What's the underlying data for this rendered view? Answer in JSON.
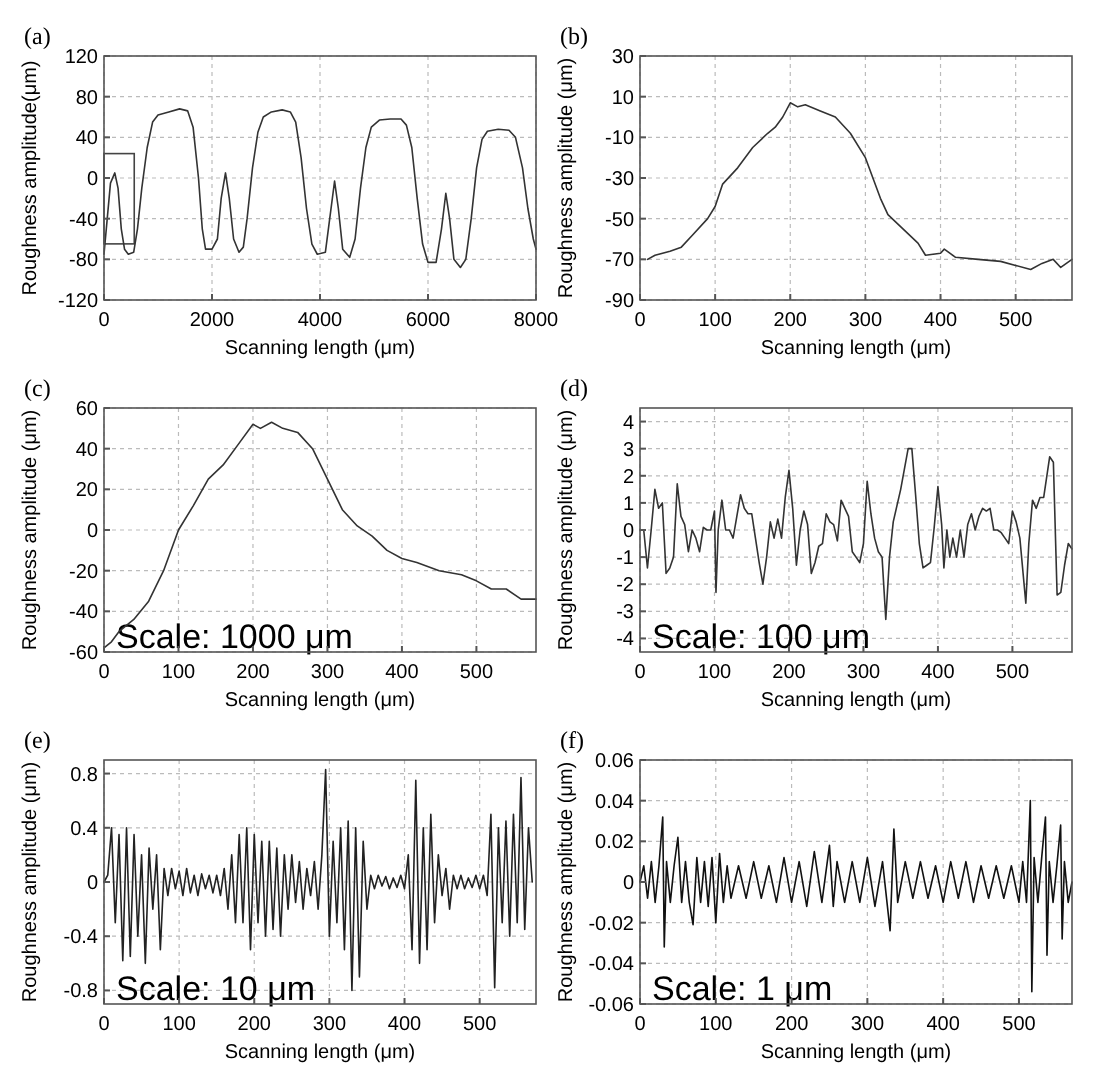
{
  "chart_data": [
    {
      "type": "line",
      "title": "(a)",
      "xlabel": "Scanning length (μm)",
      "ylabel": "Roughness amplitude(μm)",
      "color": "#333333",
      "grid": true,
      "xlim": [
        0,
        8000
      ],
      "xticks": [
        0,
        2000,
        4000,
        6000,
        8000
      ],
      "ylim": [
        -120,
        120
      ],
      "yticks": [
        -120,
        -80,
        -40,
        0,
        40,
        80,
        120
      ],
      "x": [
        0,
        60,
        120,
        200,
        260,
        320,
        380,
        450,
        550,
        620,
        700,
        800,
        900,
        1000,
        1200,
        1400,
        1550,
        1650,
        1750,
        1820,
        1880,
        2000,
        2100,
        2170,
        2250,
        2320,
        2400,
        2500,
        2580,
        2650,
        2750,
        2850,
        2950,
        3100,
        3300,
        3450,
        3550,
        3650,
        3750,
        3850,
        3950,
        4100,
        4180,
        4270,
        4340,
        4420,
        4550,
        4650,
        4750,
        4850,
        4950,
        5100,
        5300,
        5500,
        5600,
        5700,
        5800,
        5900,
        6000,
        6150,
        6250,
        6330,
        6400,
        6480,
        6600,
        6700,
        6800,
        6900,
        7000,
        7100,
        7300,
        7500,
        7620,
        7750,
        7850,
        7950,
        8000
      ],
      "values": [
        -75,
        -40,
        -5,
        5,
        -10,
        -50,
        -70,
        -75,
        -73,
        -50,
        -10,
        30,
        55,
        62,
        65,
        68,
        66,
        50,
        0,
        -50,
        -70,
        -70,
        -60,
        -20,
        5,
        -20,
        -60,
        -73,
        -68,
        -40,
        10,
        45,
        60,
        65,
        67,
        65,
        55,
        20,
        -30,
        -65,
        -75,
        -73,
        -40,
        -3,
        -30,
        -70,
        -78,
        -60,
        -10,
        30,
        50,
        57,
        58,
        58,
        52,
        30,
        -20,
        -65,
        -83,
        -83,
        -50,
        -15,
        -40,
        -80,
        -88,
        -80,
        -40,
        10,
        38,
        46,
        48,
        47,
        40,
        10,
        -30,
        -60,
        -70
      ]
    },
    {
      "type": "line",
      "title": "(b)",
      "xlabel": "Scanning length (μm)",
      "ylabel": "Roughness amplitude (μm)",
      "color": "#333333",
      "grid": true,
      "xlim": [
        0,
        575
      ],
      "xticks": [
        0,
        100,
        200,
        300,
        400,
        500
      ],
      "ylim": [
        -90,
        30
      ],
      "yticks": [
        -90,
        -70,
        -50,
        -30,
        -10,
        10,
        30
      ],
      "x": [
        10,
        20,
        40,
        55,
        70,
        90,
        100,
        110,
        130,
        150,
        170,
        180,
        190,
        200,
        210,
        220,
        240,
        260,
        280,
        300,
        320,
        330,
        350,
        370,
        380,
        400,
        405,
        420,
        450,
        480,
        500,
        520,
        535,
        550,
        560,
        575
      ],
      "values": [
        -70,
        -68,
        -66,
        -64,
        -58,
        -50,
        -44,
        -33,
        -25,
        -15,
        -8,
        -5,
        0,
        7,
        5,
        6,
        3,
        0,
        -8,
        -20,
        -40,
        -48,
        -55,
        -62,
        -68,
        -67,
        -65,
        -69,
        -70,
        -71,
        -73,
        -75,
        -72,
        -70,
        -74,
        -70
      ]
    },
    {
      "type": "line",
      "title": "(c)",
      "xlabel": "Scanning length (μm)",
      "ylabel": "Roughness amplitude (μm)",
      "color": "#333333",
      "grid": true,
      "xlim": [
        0,
        580
      ],
      "xticks": [
        0,
        100,
        200,
        300,
        400,
        500
      ],
      "ylim": [
        -60,
        60
      ],
      "yticks": [
        -60,
        -40,
        -20,
        0,
        20,
        40,
        60
      ],
      "annotations": [
        "Scale: 1000 μm"
      ],
      "x": [
        0,
        10,
        20,
        40,
        60,
        80,
        100,
        120,
        140,
        160,
        180,
        200,
        210,
        225,
        240,
        260,
        280,
        300,
        320,
        340,
        360,
        380,
        400,
        420,
        450,
        480,
        500,
        520,
        540,
        560,
        580
      ],
      "values": [
        -58,
        -55,
        -50,
        -44,
        -35,
        -20,
        0,
        12,
        25,
        32,
        42,
        52,
        50,
        53,
        50,
        48,
        40,
        25,
        10,
        2,
        -3,
        -10,
        -14,
        -16,
        -20,
        -22,
        -25,
        -29,
        -29,
        -34,
        -34
      ]
    },
    {
      "type": "line",
      "title": "(d)",
      "xlabel": "Scanning length (μm)",
      "ylabel": "Roughness amplitude (μm)",
      "color": "#333333",
      "grid": true,
      "xlim": [
        0,
        580
      ],
      "xticks": [
        0,
        100,
        200,
        300,
        400,
        500
      ],
      "ylim": [
        -4.5,
        4.5
      ],
      "yticks": [
        -4,
        -3,
        -2,
        -1,
        0,
        1,
        2,
        3,
        4
      ],
      "annotations": [
        "Scale: 100 μm"
      ],
      "x": [
        0,
        5,
        10,
        15,
        20,
        25,
        30,
        35,
        40,
        45,
        50,
        55,
        60,
        65,
        70,
        75,
        80,
        85,
        90,
        95,
        100,
        102,
        105,
        110,
        115,
        120,
        125,
        130,
        135,
        140,
        145,
        150,
        155,
        160,
        165,
        170,
        175,
        180,
        185,
        190,
        195,
        200,
        205,
        210,
        215,
        220,
        225,
        230,
        235,
        240,
        245,
        250,
        255,
        260,
        265,
        270,
        275,
        280,
        285,
        290,
        295,
        300,
        305,
        310,
        315,
        320,
        325,
        330,
        335,
        340,
        350,
        360,
        365,
        370,
        375,
        380,
        385,
        390,
        395,
        400,
        405,
        408,
        412,
        416,
        420,
        425,
        430,
        435,
        440,
        445,
        450,
        455,
        460,
        465,
        470,
        475,
        480,
        485,
        490,
        495,
        500,
        505,
        510,
        518,
        522,
        527,
        532,
        537,
        542,
        550,
        555,
        560,
        565,
        570,
        575,
        580
      ],
      "values": [
        0,
        0,
        -1.4,
        0,
        1.5,
        0.8,
        1,
        -1.6,
        -1.4,
        -1,
        1.7,
        0.5,
        0.2,
        -0.8,
        0,
        -0.3,
        -0.8,
        0.1,
        0,
        0,
        0.7,
        -2.3,
        0,
        1.1,
        0,
        0,
        -0.3,
        0.5,
        1.3,
        0.8,
        0.6,
        0.6,
        -0.3,
        -1.2,
        -2,
        -1,
        0.3,
        -0.3,
        0.4,
        -0.3,
        1.2,
        2.2,
        0.8,
        -1.3,
        0,
        0.7,
        0.2,
        -1.6,
        -1.2,
        -0.6,
        -0.5,
        0.6,
        0.3,
        0.2,
        -0.4,
        1.1,
        0.8,
        0.5,
        -0.8,
        -1,
        -1.2,
        -0.5,
        1.8,
        0.6,
        -0.3,
        -0.8,
        -1,
        -3.3,
        -1,
        0.3,
        1.5,
        3,
        3,
        1.3,
        -0.5,
        -1.4,
        -1.3,
        -1.2,
        0.1,
        1.6,
        0.2,
        -1.4,
        0,
        -1,
        -0.3,
        -1,
        0,
        -1,
        0.2,
        0.6,
        0,
        0.5,
        0.8,
        0.7,
        0.8,
        0,
        0,
        -0.1,
        -0.3,
        -0.5,
        0.7,
        0.3,
        -0.3,
        -2.7,
        -0.5,
        1.1,
        0.8,
        1.2,
        1.2,
        2.7,
        2.5,
        -2.4,
        -2.3,
        -1.3,
        -0.5,
        -0.7
      ]
    },
    {
      "type": "line",
      "title": "(e)",
      "xlabel": "Scanning length (μm)",
      "ylabel": "Roughness amplitude (μm)",
      "color": "#222222",
      "grid": true,
      "xlim": [
        0,
        575
      ],
      "xticks": [
        0,
        100,
        200,
        300,
        400,
        500
      ],
      "ylim": [
        -0.9,
        0.9
      ],
      "yticks": [
        -0.8,
        -0.4,
        0,
        0.4,
        0.8
      ],
      "annotations": [
        "Scale: 10 μm"
      ],
      "x": [
        0,
        5,
        10,
        15,
        20,
        25,
        30,
        35,
        40,
        45,
        50,
        55,
        60,
        65,
        70,
        75,
        80,
        85,
        90,
        95,
        100,
        105,
        110,
        115,
        120,
        125,
        130,
        135,
        140,
        145,
        150,
        155,
        160,
        165,
        170,
        175,
        180,
        185,
        190,
        195,
        200,
        205,
        210,
        215,
        220,
        225,
        230,
        235,
        240,
        245,
        250,
        255,
        260,
        265,
        270,
        275,
        280,
        285,
        290,
        295,
        300,
        305,
        310,
        315,
        320,
        325,
        330,
        335,
        340,
        345,
        350,
        355,
        360,
        365,
        370,
        375,
        380,
        385,
        390,
        395,
        400,
        405,
        410,
        415,
        420,
        425,
        430,
        435,
        440,
        445,
        450,
        455,
        460,
        465,
        470,
        475,
        480,
        485,
        490,
        495,
        500,
        505,
        510,
        515,
        520,
        525,
        530,
        535,
        540,
        545,
        550,
        555,
        560,
        565,
        570
      ],
      "values": [
        0,
        0.05,
        0.4,
        -0.3,
        0.35,
        -0.58,
        0.4,
        -0.55,
        0.35,
        -0.4,
        0.2,
        -0.6,
        0.25,
        -0.2,
        0.2,
        -0.5,
        0.1,
        -0.1,
        0.1,
        -0.05,
        0.08,
        -0.1,
        0.1,
        -0.08,
        0.05,
        -0.1,
        0.06,
        -0.05,
        0.05,
        -0.08,
        0.05,
        -0.1,
        0.1,
        -0.2,
        0.2,
        -0.3,
        0.35,
        -0.3,
        0.4,
        -0.5,
        0.35,
        -0.3,
        0.3,
        -0.4,
        0.3,
        -0.35,
        0.25,
        -0.4,
        0.2,
        -0.2,
        0.2,
        -0.15,
        0.15,
        -0.2,
        0.1,
        -0.1,
        0.15,
        -0.2,
        0.2,
        0.83,
        -0.4,
        0.3,
        -0.3,
        0.4,
        -0.5,
        0.45,
        -0.8,
        0.4,
        -0.7,
        0.3,
        -0.2,
        0.05,
        -0.05,
        0.05,
        -0.03,
        0.04,
        -0.05,
        0.03,
        -0.04,
        0.05,
        -0.05,
        0.2,
        -0.5,
        0.75,
        -0.6,
        0.4,
        -0.5,
        0.5,
        -0.3,
        0.2,
        -0.1,
        0.1,
        -0.2,
        0.05,
        -0.05,
        0.05,
        -0.05,
        0.03,
        -0.04,
        0.05,
        -0.05,
        0.05,
        -0.1,
        0.5,
        -0.78,
        0.4,
        -0.3,
        0.45,
        -0.4,
        0.5,
        -0.3,
        0.77,
        -0.35,
        0.4,
        0
      ]
    },
    {
      "type": "line",
      "title": "(f)",
      "xlabel": "Scanning length (μm)",
      "ylabel": "Roughness amplitude (μm)",
      "color": "#111111",
      "grid": true,
      "xlim": [
        0,
        570
      ],
      "xticks": [
        0,
        100,
        200,
        300,
        400,
        500
      ],
      "ylim": [
        -0.06,
        0.06
      ],
      "yticks": [
        -0.06,
        -0.04,
        -0.02,
        0,
        0.02,
        0.04,
        0.06
      ],
      "annotations": [
        "Scale: 1 μm"
      ],
      "x": [
        0,
        5,
        10,
        15,
        20,
        25,
        30,
        32,
        35,
        40,
        45,
        50,
        55,
        60,
        65,
        70,
        75,
        80,
        85,
        90,
        95,
        100,
        105,
        110,
        115,
        120,
        130,
        140,
        150,
        160,
        170,
        180,
        190,
        200,
        210,
        220,
        230,
        240,
        250,
        255,
        260,
        270,
        280,
        290,
        300,
        310,
        320,
        330,
        335,
        340,
        350,
        360,
        370,
        380,
        390,
        400,
        410,
        420,
        430,
        440,
        450,
        460,
        470,
        480,
        490,
        500,
        505,
        510,
        515,
        517,
        520,
        525,
        530,
        535,
        537,
        540,
        545,
        550,
        555,
        557,
        560,
        565,
        570
      ],
      "values": [
        0,
        0.008,
        -0.008,
        0.01,
        -0.01,
        0.008,
        0.032,
        -0.032,
        0.01,
        -0.01,
        0.008,
        0.022,
        -0.01,
        0.01,
        -0.01,
        -0.021,
        0.012,
        -0.01,
        0.01,
        -0.012,
        0.012,
        -0.02,
        0.014,
        -0.01,
        0.008,
        -0.008,
        0.008,
        -0.008,
        0.01,
        -0.008,
        0.008,
        -0.01,
        0.012,
        -0.01,
        0.01,
        -0.012,
        0.015,
        -0.01,
        0.018,
        -0.012,
        0.01,
        -0.01,
        0.01,
        -0.01,
        0.012,
        -0.012,
        0.01,
        -0.024,
        0.026,
        -0.01,
        0.01,
        -0.008,
        0.01,
        -0.008,
        0.008,
        -0.01,
        0.01,
        -0.008,
        0.01,
        -0.01,
        0.008,
        -0.008,
        0.008,
        -0.008,
        0.008,
        -0.01,
        0.01,
        -0.01,
        0.04,
        -0.054,
        0.012,
        -0.01,
        0.012,
        0.032,
        -0.036,
        0.01,
        -0.01,
        0.008,
        0.028,
        -0.028,
        0.01,
        -0.01,
        0
      ]
    }
  ]
}
